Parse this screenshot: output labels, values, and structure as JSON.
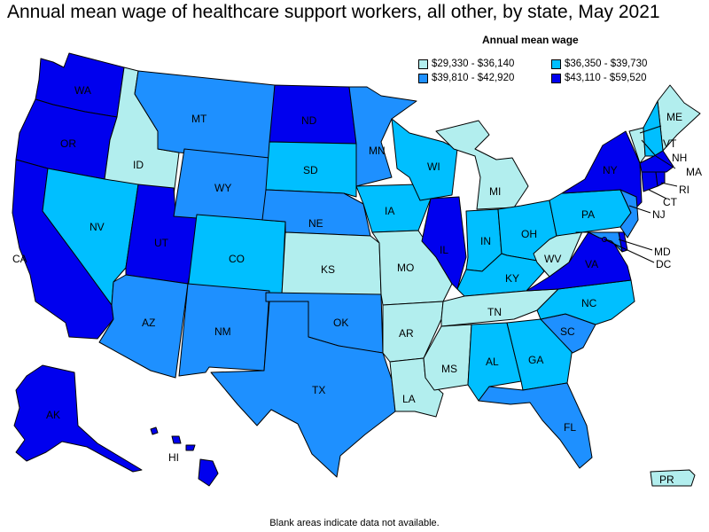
{
  "title": "Annual mean wage of healthcare support workers, all other, by state, May 2021",
  "legend": {
    "title": "Annual mean wage",
    "bins": [
      {
        "label": "$29,330 - $36,140",
        "color": "#b2eeee"
      },
      {
        "label": "$36,350 - $39,730",
        "color": "#00bfff"
      },
      {
        "label": "$39,810 - $42,920",
        "color": "#1e90ff"
      },
      {
        "label": "$43,110 - $59,520",
        "color": "#0000ee"
      }
    ]
  },
  "footnote": "Blank areas indicate data not available.",
  "states": {
    "WA": 3,
    "OR": 3,
    "CA": 3,
    "ID": 0,
    "NV": 1,
    "UT": 3,
    "AZ": 2,
    "MT": 2,
    "WY": 2,
    "CO": 1,
    "NM": 2,
    "ND": 3,
    "SD": 1,
    "NE": 2,
    "KS": 0,
    "OK": 2,
    "TX": 2,
    "MN": 2,
    "IA": 1,
    "MO": 0,
    "AR": 0,
    "LA": 0,
    "WI": 1,
    "IL": 3,
    "MI": 0,
    "IN": 1,
    "OH": 1,
    "KY": 1,
    "TN": 0,
    "MS": 0,
    "AL": 1,
    "GA": 1,
    "FL": 2,
    "SC": 2,
    "NC": 1,
    "VA": 3,
    "WV": 0,
    "PA": 1,
    "NY": 3,
    "ME": 0,
    "VT": 0,
    "NH": 1,
    "MA": 3,
    "CT": 3,
    "RI": 3,
    "NJ": 2,
    "DE": 3,
    "MD": 2,
    "DC": 3,
    "AK": 3,
    "HI": 3,
    "PR": 0
  }
}
